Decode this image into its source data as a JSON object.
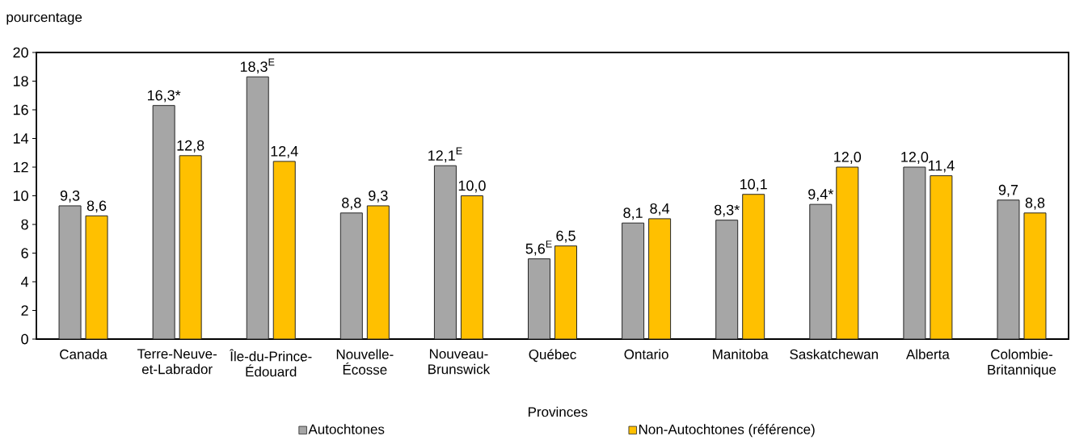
{
  "chart_data": {
    "type": "bar",
    "ylabel": "pourcentage",
    "xlabel": "Provinces",
    "categories": [
      "Canada",
      "Terre-Neuve-et-Labrador",
      "Île-du-Prince-Édouard",
      "Nouvelle-Écosse",
      "Nouveau-Brunswick",
      "Québec",
      "Ontario",
      "Manitoba",
      "Saskatchewan",
      "Alberta",
      "Colombie-Britannique"
    ],
    "series": [
      {
        "name": "Autochtones",
        "color": "#a6a6a6",
        "values": [
          9.3,
          16.3,
          18.3,
          8.8,
          12.1,
          5.6,
          8.1,
          8.3,
          9.4,
          12.0,
          9.7
        ],
        "value_labels": [
          "9,3",
          "16,3*",
          "18,3$^{E}$",
          "8,8",
          "12,1$^{E}$",
          "5,6$^{E}$",
          "8,1",
          "8,3*",
          "9,4*",
          "12,0",
          "9,7"
        ]
      },
      {
        "name": "Non-Autochtones (référence)",
        "color": "#ffc000",
        "values": [
          8.6,
          12.8,
          12.4,
          9.3,
          10.0,
          6.5,
          8.4,
          10.1,
          12.0,
          11.4,
          8.8
        ],
        "value_labels": [
          "8,6",
          "12,8",
          "12,4",
          "9,3",
          "10,0",
          "6,5",
          "8,4",
          "10,1",
          "12,0",
          "11,4",
          "8,8"
        ]
      }
    ],
    "ylim": [
      0,
      20
    ],
    "yticks": [
      0,
      2,
      4,
      6,
      8,
      10,
      12,
      14,
      16,
      18,
      20
    ],
    "legend": "bottom"
  }
}
